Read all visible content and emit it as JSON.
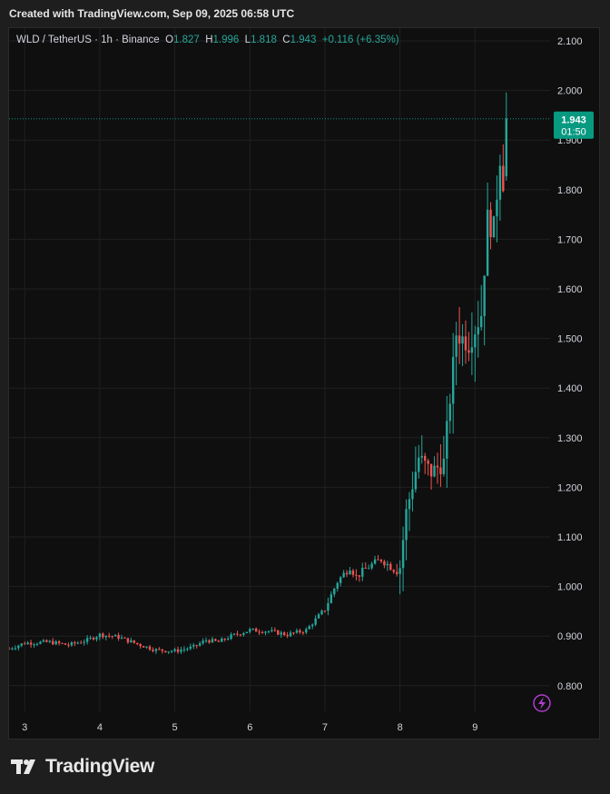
{
  "header": {
    "created_text": "Created with TradingView.com, Sep 09, 2025 06:58 UTC"
  },
  "footer": {
    "brand": "TradingView"
  },
  "colors": {
    "up": "#26a69a",
    "down": "#ef5350",
    "background": "#0f0f0f",
    "grid": "#202020",
    "text": "#d1d4dc",
    "price_tag": "#089981",
    "accent_icon": "#b13dd0"
  },
  "chart_data": {
    "type": "candlestick",
    "symbol": "WLD / TetherUS · 1h · Binance",
    "ohlc": {
      "o_label": "O",
      "o": "1.827",
      "h_label": "H",
      "h": "1.996",
      "l_label": "L",
      "l": "1.818",
      "c_label": "C",
      "c": "1.943",
      "change": "+0.116 (+6.35%)"
    },
    "last_price": "1.943",
    "countdown": "01:50",
    "y_ticks": [
      "2.100",
      "2.000",
      "1.900",
      "1.800",
      "1.700",
      "1.600",
      "1.500",
      "1.400",
      "1.300",
      "1.200",
      "1.100",
      "1.000",
      "0.900",
      "0.800"
    ],
    "ylim": [
      0.74,
      2.14
    ],
    "x_ticks": [
      "3",
      "4",
      "5",
      "6",
      "7",
      "8",
      "9"
    ],
    "x_tick_hours": [
      0,
      24,
      48,
      72,
      96,
      120,
      144
    ],
    "xlim_hours": [
      -5,
      168
    ],
    "grid": true,
    "anchors": [
      [
        -5,
        0.875
      ],
      [
        0,
        0.886
      ],
      [
        8,
        0.888
      ],
      [
        14,
        0.882
      ],
      [
        20,
        0.892
      ],
      [
        24,
        0.903
      ],
      [
        30,
        0.898
      ],
      [
        36,
        0.884
      ],
      [
        42,
        0.872
      ],
      [
        48,
        0.87
      ],
      [
        54,
        0.878
      ],
      [
        58,
        0.892
      ],
      [
        62,
        0.888
      ],
      [
        66,
        0.9
      ],
      [
        72,
        0.912
      ],
      [
        78,
        0.91
      ],
      [
        84,
        0.903
      ],
      [
        90,
        0.912
      ],
      [
        96,
        0.955
      ],
      [
        100,
        1.01
      ],
      [
        104,
        1.04
      ],
      [
        106,
        1.02
      ],
      [
        110,
        1.04
      ],
      [
        114,
        1.055
      ],
      [
        118,
        1.035
      ],
      [
        120,
        1.04
      ],
      [
        122,
        1.15
      ],
      [
        126,
        1.26
      ],
      [
        130,
        1.23
      ],
      [
        134,
        1.25
      ],
      [
        138,
        1.51
      ],
      [
        142,
        1.49
      ],
      [
        146,
        1.55
      ],
      [
        148,
        1.74
      ],
      [
        150,
        1.72
      ],
      [
        152,
        1.87
      ],
      [
        153,
        1.82
      ],
      [
        154,
        1.943
      ]
    ]
  }
}
